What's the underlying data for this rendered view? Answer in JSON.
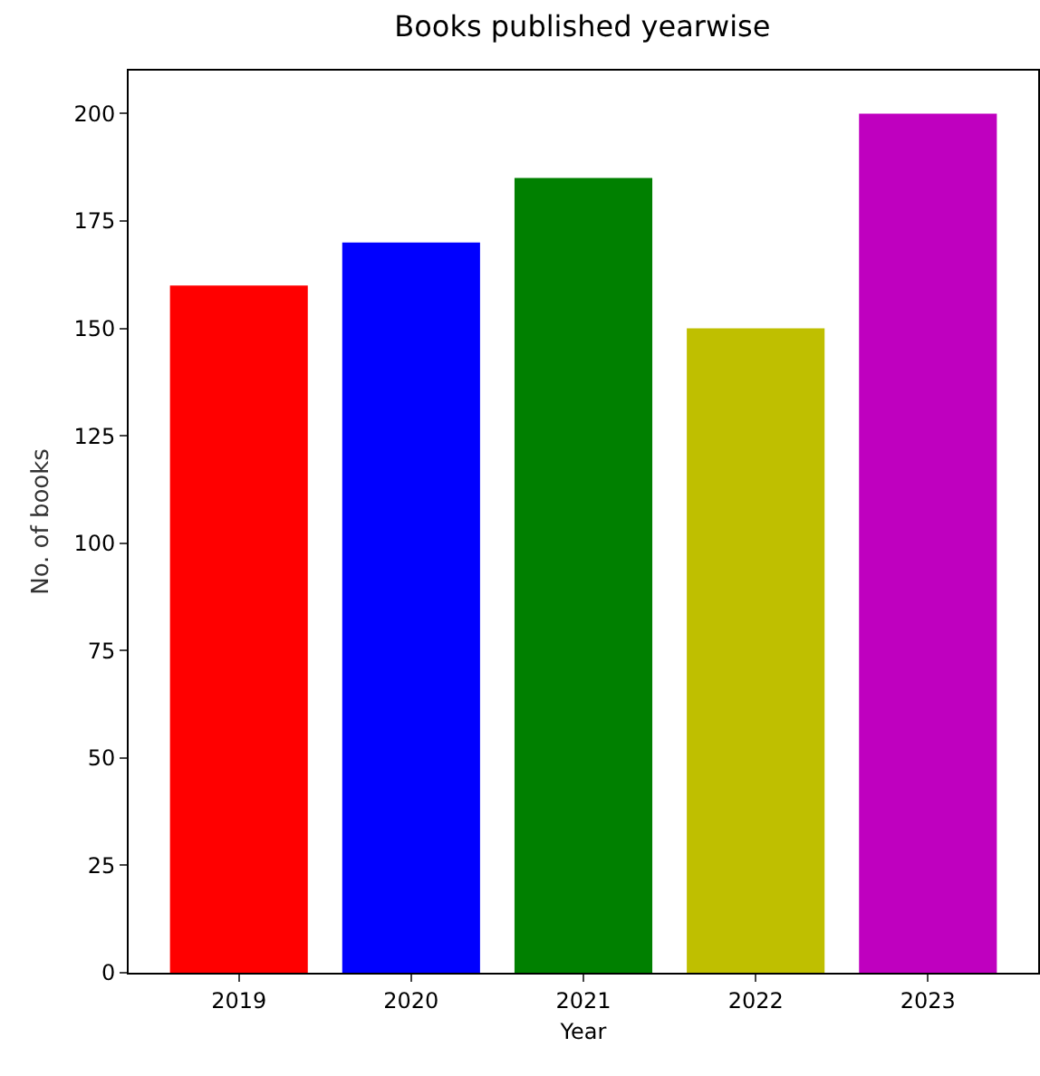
{
  "chart_data": {
    "type": "bar",
    "title": "Books published yearwise",
    "xlabel": "Year",
    "ylabel": "No. of books",
    "categories": [
      "2019",
      "2020",
      "2021",
      "2022",
      "2023"
    ],
    "values": [
      160,
      170,
      185,
      150,
      200
    ],
    "colors": [
      "#ff0000",
      "#0000ff",
      "#008000",
      "#bfbf00",
      "#bf00bf"
    ],
    "ylim": [
      0,
      210
    ],
    "yticks": [
      0,
      25,
      50,
      75,
      100,
      125,
      150,
      175,
      200
    ],
    "grid": false
  }
}
